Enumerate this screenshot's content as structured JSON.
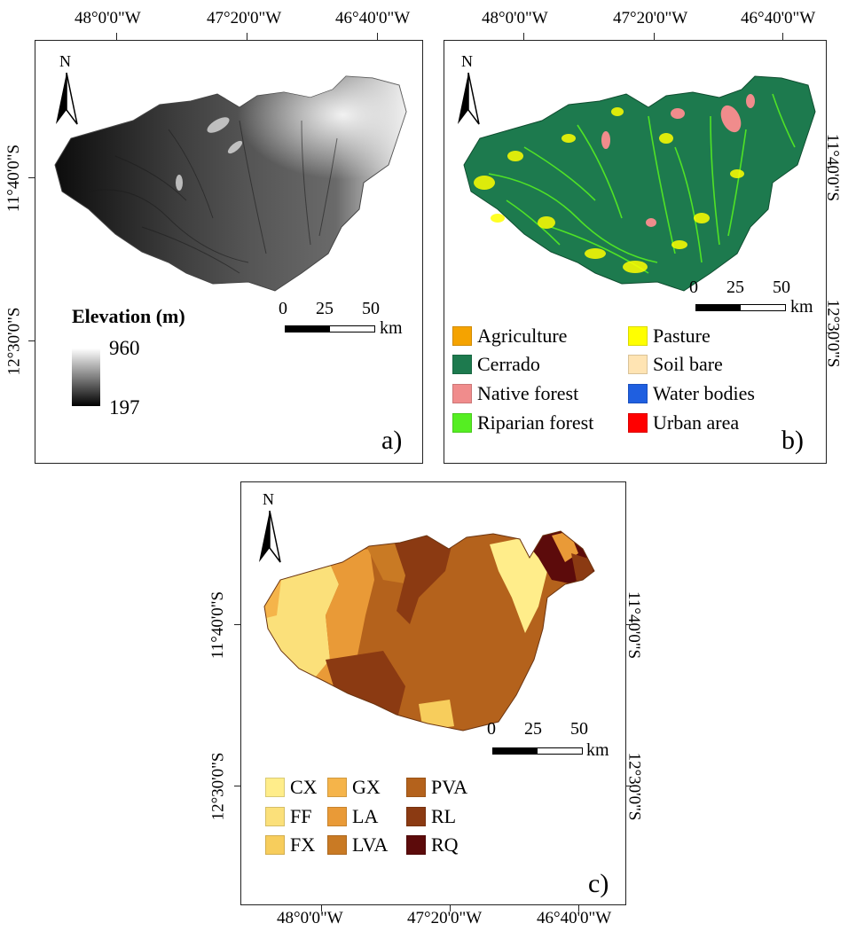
{
  "lon_ticks": [
    "48°0'0\"W",
    "47°20'0\"W",
    "46°40'0\"W"
  ],
  "lat_ticks": [
    "11°40'0\"S",
    "12°30'0\"S"
  ],
  "north_label": "N",
  "scale": {
    "t0": "0",
    "t1": "25",
    "t2": "50",
    "unit": "km"
  },
  "panel_a": {
    "letter": "a)",
    "legend_title": "Elevation (m)",
    "max_label": "960",
    "min_label": "197"
  },
  "panel_b": {
    "letter": "b)",
    "legend": [
      {
        "label": "Agriculture",
        "color": "#f5a300"
      },
      {
        "label": "Pasture",
        "color": "#ffff00"
      },
      {
        "label": "Cerrado",
        "color": "#1d7a4e"
      },
      {
        "label": "Soil bare",
        "color": "#ffe4b3"
      },
      {
        "label": "Native forest",
        "color": "#f08c8c"
      },
      {
        "label": "Water bodies",
        "color": "#1f5fe0"
      },
      {
        "label": "Riparian forest",
        "color": "#55ee22"
      },
      {
        "label": "Urban area",
        "color": "#ff0000"
      }
    ]
  },
  "panel_c": {
    "letter": "c)",
    "legend": [
      {
        "label": "CX",
        "color": "#ffed8a"
      },
      {
        "label": "GX",
        "color": "#f5b44a"
      },
      {
        "label": "PVA",
        "color": "#b4621c"
      },
      {
        "label": "FF",
        "color": "#fbe07a"
      },
      {
        "label": "LA",
        "color": "#e99a37"
      },
      {
        "label": "RL",
        "color": "#8b3a12"
      },
      {
        "label": "FX",
        "color": "#f7cd5c"
      },
      {
        "label": "LVA",
        "color": "#c97a24"
      },
      {
        "label": "RQ",
        "color": "#5c0b0b"
      }
    ]
  }
}
